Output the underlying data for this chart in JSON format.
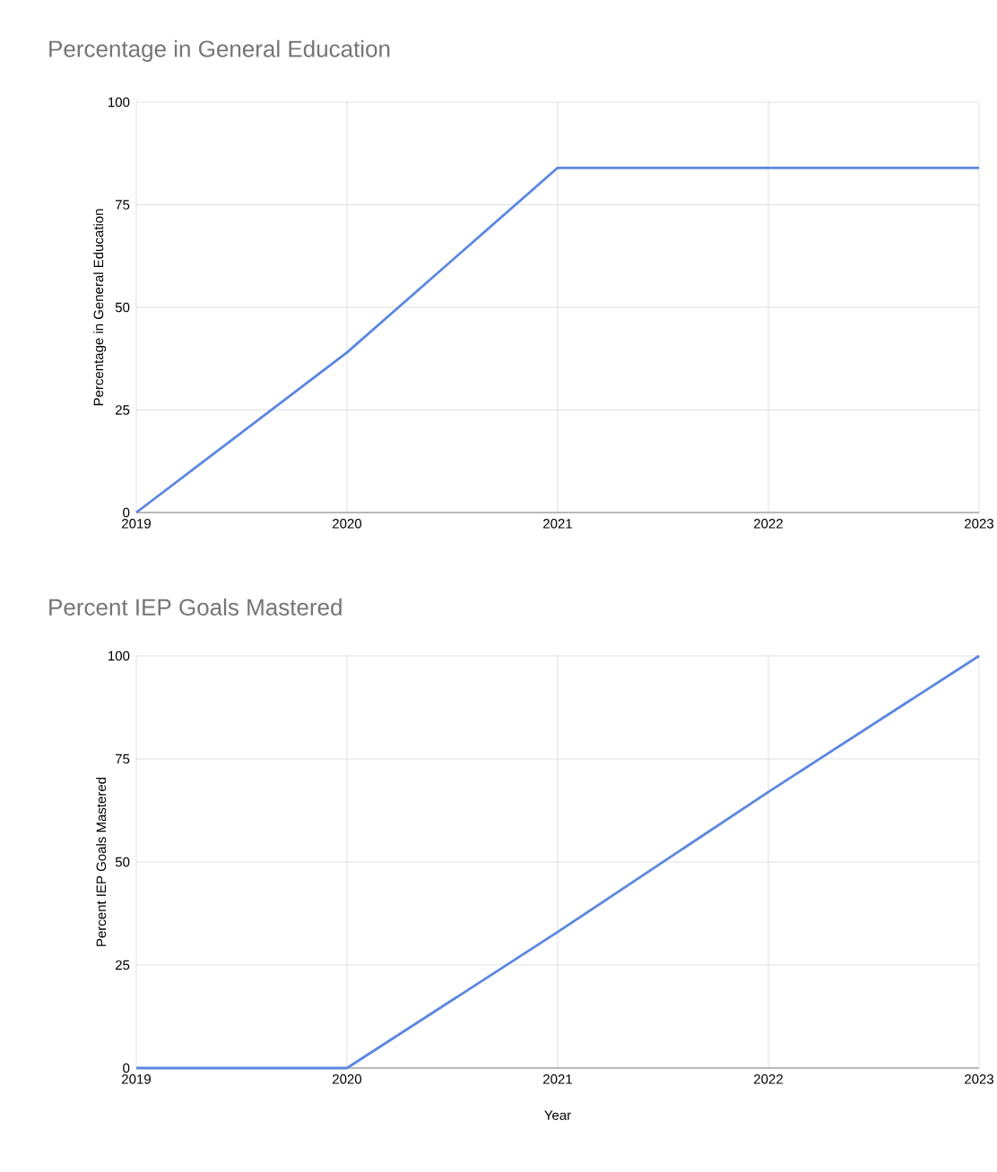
{
  "chart_data": [
    {
      "type": "line",
      "title": "Percentage in General Education",
      "ylabel": "Percentage in General Education",
      "x": [
        2019,
        2020,
        2021,
        2022,
        2023
      ],
      "series": [
        {
          "color": "#5b87e0",
          "values": [
            0,
            39,
            84,
            84,
            84
          ]
        }
      ],
      "xlim": [
        2019,
        2023
      ],
      "xticks": [
        2019,
        2020,
        2021,
        2022,
        2023
      ],
      "ylim": [
        0,
        100
      ],
      "yticks": [
        0,
        25,
        50,
        75,
        100
      ],
      "grid": true
    },
    {
      "type": "line",
      "title": "Percent IEP Goals Mastered",
      "ylabel": "Percent IEP Goals Mastered",
      "xlabel": "Year",
      "x": [
        2019,
        2020,
        2021,
        2022,
        2023
      ],
      "series": [
        {
          "color": "#5b87e0",
          "values": [
            0,
            0,
            33,
            67,
            100
          ]
        }
      ],
      "xlim": [
        2019,
        2023
      ],
      "xticks": [
        2019,
        2020,
        2021,
        2022,
        2023
      ],
      "ylim": [
        0,
        100
      ],
      "yticks": [
        0,
        25,
        50,
        75,
        100
      ],
      "grid": true
    }
  ]
}
